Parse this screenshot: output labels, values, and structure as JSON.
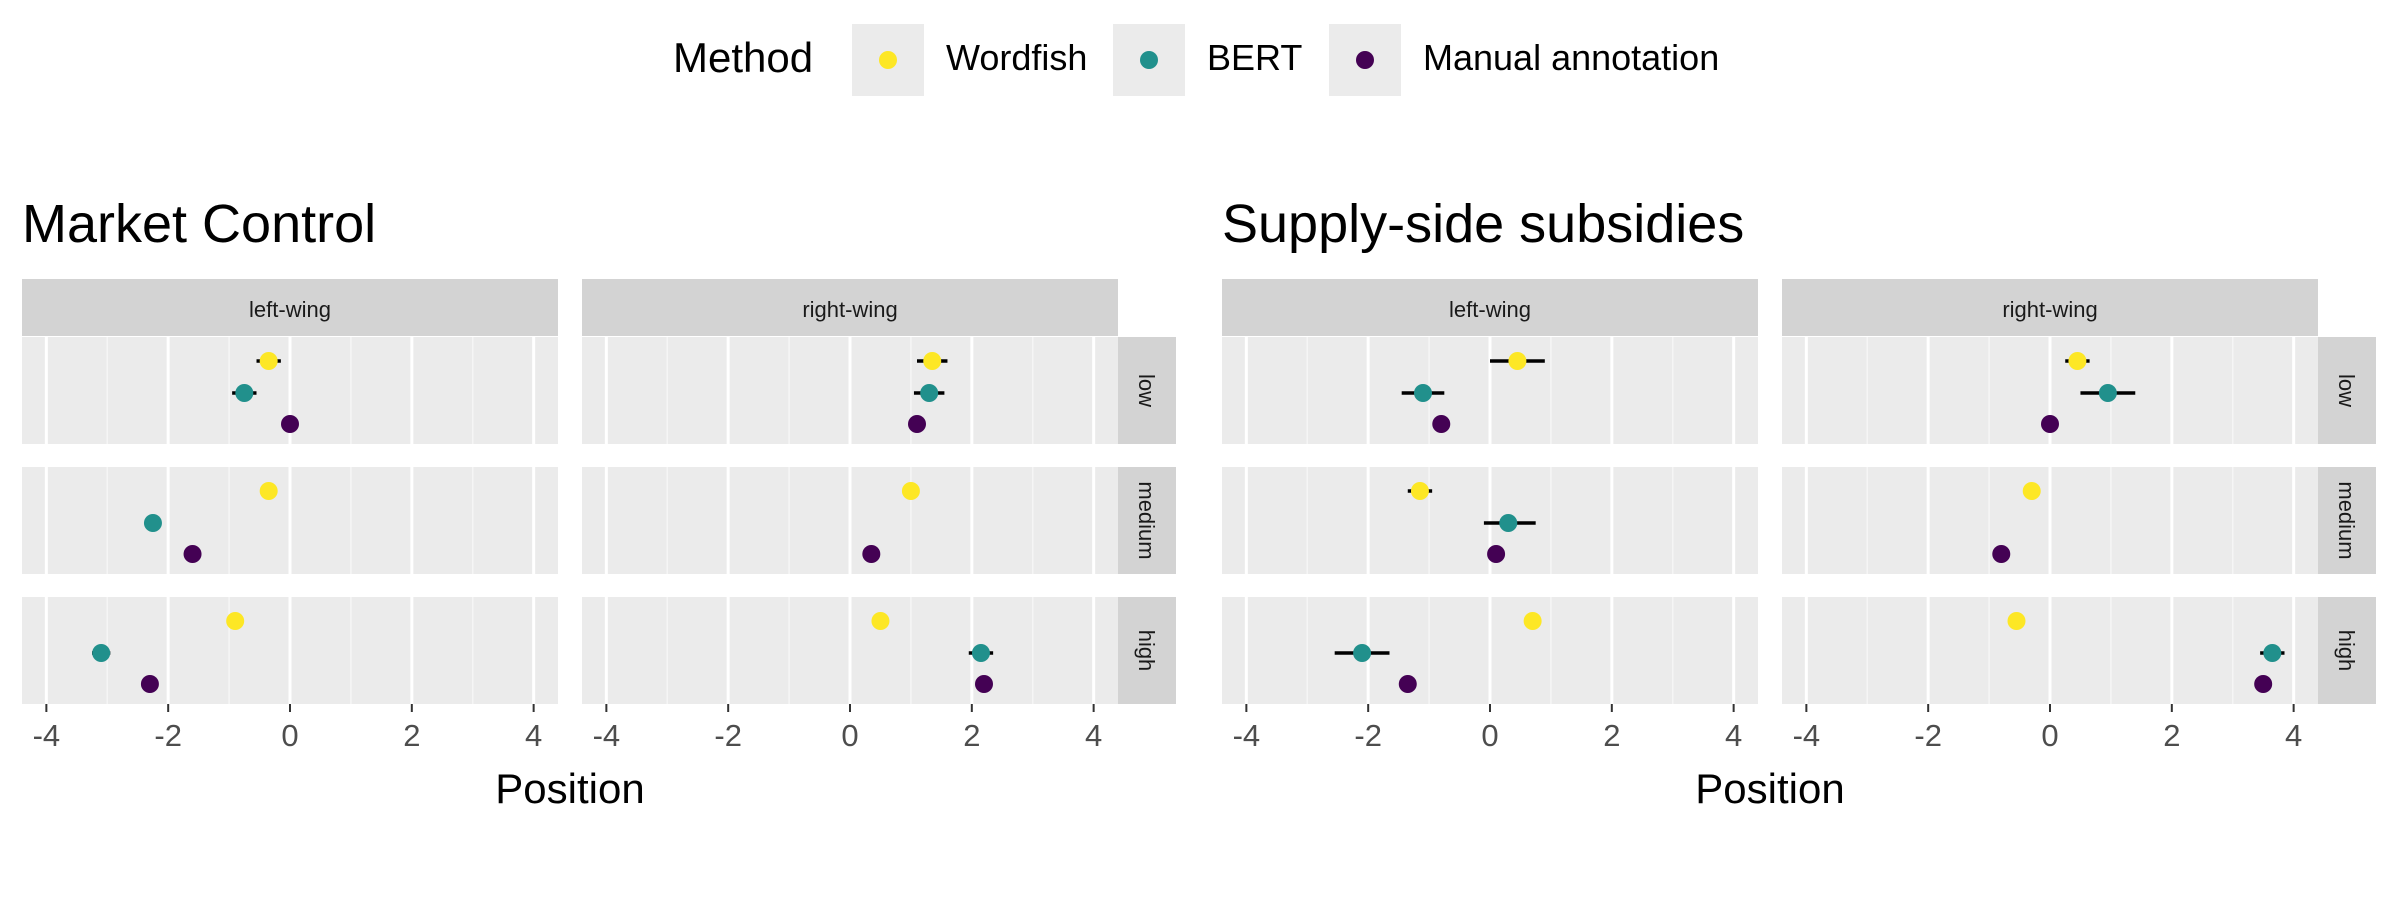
{
  "legend": {
    "title": "Method",
    "items": [
      {
        "label": "Wordfish",
        "color": "#FDE725"
      },
      {
        "label": "BERT",
        "color": "#21908C"
      },
      {
        "label": "Manual annotation",
        "color": "#440154"
      }
    ]
  },
  "chart_data": [
    {
      "type": "scatter",
      "title": "Market Control",
      "xlabel": "Position",
      "xlim": [
        -4.4,
        4.4
      ],
      "xticks": [
        -4,
        -2,
        0,
        2,
        4
      ],
      "columns": [
        "left-wing",
        "right-wing"
      ],
      "rows": [
        "low",
        "medium",
        "high"
      ],
      "panels": [
        {
          "column": "left-wing",
          "row": "low",
          "points": [
            {
              "method": "Wordfish",
              "x": -0.35,
              "lo": -0.55,
              "hi": -0.15
            },
            {
              "method": "BERT",
              "x": -0.75,
              "lo": -0.95,
              "hi": -0.55
            },
            {
              "method": "Manual annotation",
              "x": 0.0
            }
          ]
        },
        {
          "column": "left-wing",
          "row": "medium",
          "points": [
            {
              "method": "Wordfish",
              "x": -0.35
            },
            {
              "method": "BERT",
              "x": -2.25
            },
            {
              "method": "Manual annotation",
              "x": -1.6
            }
          ]
        },
        {
          "column": "left-wing",
          "row": "high",
          "points": [
            {
              "method": "Wordfish",
              "x": -0.9
            },
            {
              "method": "BERT",
              "x": -3.1,
              "lo": -3.25,
              "hi": -2.95
            },
            {
              "method": "Manual annotation",
              "x": -2.3
            }
          ]
        },
        {
          "column": "right-wing",
          "row": "low",
          "points": [
            {
              "method": "Wordfish",
              "x": 1.35,
              "lo": 1.1,
              "hi": 1.6
            },
            {
              "method": "BERT",
              "x": 1.3,
              "lo": 1.05,
              "hi": 1.55
            },
            {
              "method": "Manual annotation",
              "x": 1.1
            }
          ]
        },
        {
          "column": "right-wing",
          "row": "medium",
          "points": [
            {
              "method": "Wordfish",
              "x": 1.0
            },
            {
              "method": "Manual annotation",
              "x": 0.35
            }
          ]
        },
        {
          "column": "right-wing",
          "row": "high",
          "points": [
            {
              "method": "Wordfish",
              "x": 0.5
            },
            {
              "method": "BERT",
              "x": 2.15,
              "lo": 1.95,
              "hi": 2.35
            },
            {
              "method": "Manual annotation",
              "x": 2.2
            }
          ]
        }
      ]
    },
    {
      "type": "scatter",
      "title": "Supply-side subsidies",
      "xlabel": "Position",
      "xlim": [
        -4.4,
        4.4
      ],
      "xticks": [
        -4,
        -2,
        0,
        2,
        4
      ],
      "columns": [
        "left-wing",
        "right-wing"
      ],
      "rows": [
        "low",
        "medium",
        "high"
      ],
      "panels": [
        {
          "column": "left-wing",
          "row": "low",
          "points": [
            {
              "method": "Wordfish",
              "x": 0.45,
              "lo": 0.0,
              "hi": 0.9
            },
            {
              "method": "BERT",
              "x": -1.1,
              "lo": -1.45,
              "hi": -0.75
            },
            {
              "method": "Manual annotation",
              "x": -0.8
            }
          ]
        },
        {
          "column": "left-wing",
          "row": "medium",
          "points": [
            {
              "method": "Wordfish",
              "x": -1.15,
              "lo": -1.35,
              "hi": -0.95
            },
            {
              "method": "BERT",
              "x": 0.3,
              "lo": -0.1,
              "hi": 0.75
            },
            {
              "method": "Manual annotation",
              "x": 0.1
            }
          ]
        },
        {
          "column": "left-wing",
          "row": "high",
          "points": [
            {
              "method": "Wordfish",
              "x": 0.7
            },
            {
              "method": "BERT",
              "x": -2.1,
              "lo": -2.55,
              "hi": -1.65
            },
            {
              "method": "Manual annotation",
              "x": -1.35
            }
          ]
        },
        {
          "column": "right-wing",
          "row": "low",
          "points": [
            {
              "method": "Wordfish",
              "x": 0.45,
              "lo": 0.25,
              "hi": 0.65
            },
            {
              "method": "BERT",
              "x": 0.95,
              "lo": 0.5,
              "hi": 1.4
            },
            {
              "method": "Manual annotation",
              "x": 0.0
            }
          ]
        },
        {
          "column": "right-wing",
          "row": "medium",
          "points": [
            {
              "method": "Wordfish",
              "x": -0.3
            },
            {
              "method": "Manual annotation",
              "x": -0.8
            }
          ]
        },
        {
          "column": "right-wing",
          "row": "high",
          "points": [
            {
              "method": "Wordfish",
              "x": -0.55
            },
            {
              "method": "BERT",
              "x": 3.65,
              "lo": 3.45,
              "hi": 3.85
            },
            {
              "method": "Manual annotation",
              "x": 3.5
            }
          ]
        }
      ]
    }
  ]
}
